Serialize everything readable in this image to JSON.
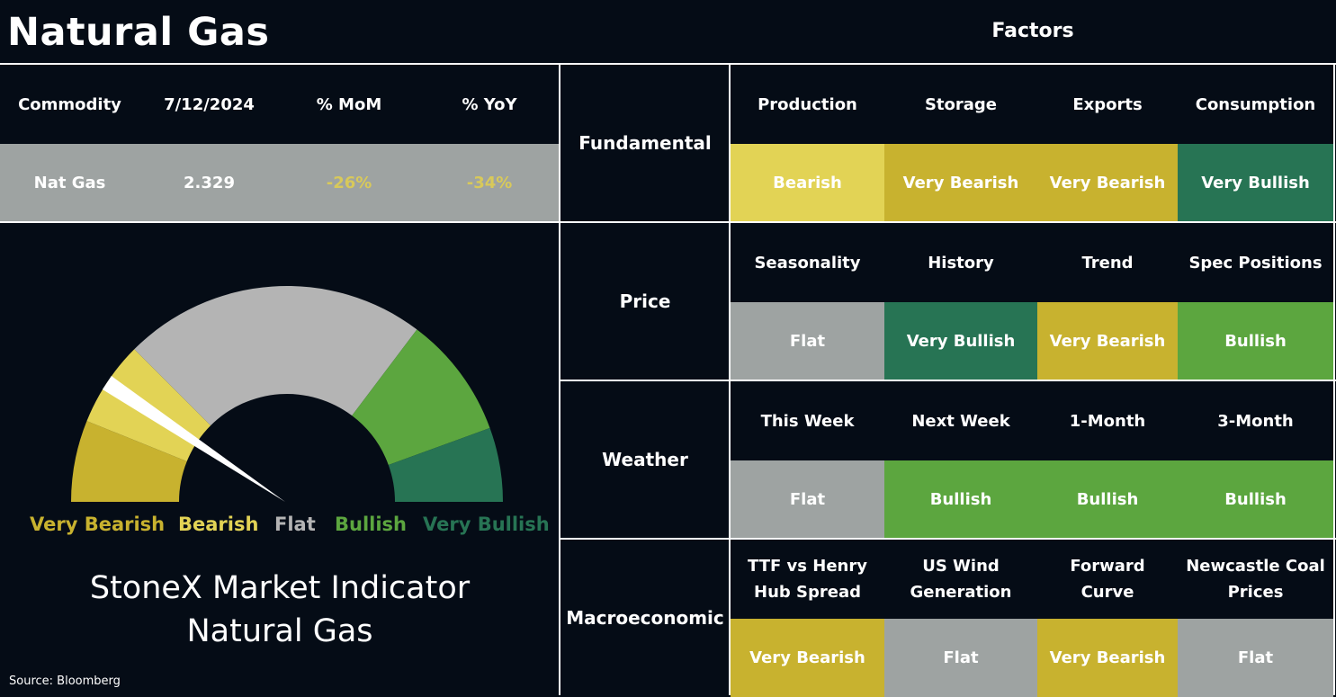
{
  "title": "Natural Gas",
  "factors_title": "Factors",
  "summary": {
    "headers": [
      "Commodity",
      "7/12/2024",
      "% MoM",
      "% YoY"
    ],
    "row": [
      "Nat Gas",
      "2.329",
      "-26%",
      "-34%"
    ]
  },
  "colors": {
    "background": "#050c16",
    "very_bearish": "#c8b22f",
    "bearish": "#e2d355",
    "flat": "#9ea3a2",
    "bullish": "#5ca63f",
    "very_bullish": "#277454",
    "negative_text": "#d8c95a"
  },
  "chart_data": {
    "type": "gauge",
    "categories": [
      "Very Bearish",
      "Bearish",
      "Flat",
      "Bullish",
      "Very Bullish"
    ],
    "colors": [
      "#c8b22f",
      "#e2d355",
      "#b4b4b4",
      "#5ca63f",
      "#277454"
    ],
    "label_colors": [
      "#c8b22f",
      "#e2d355",
      "#b4b4b4",
      "#5ca63f",
      "#277454"
    ],
    "pointer_category": "Bearish",
    "title": "StoneX Market Indicator",
    "subtitle": "Natural Gas"
  },
  "source": "Source: Bloomberg",
  "factors": [
    {
      "category": "Fundamental",
      "items": [
        {
          "name": "Production",
          "value": "Bearish"
        },
        {
          "name": "Storage",
          "value": "Very Bearish"
        },
        {
          "name": "Exports",
          "value": "Very Bearish"
        },
        {
          "name": "Consumption",
          "value": "Very Bullish"
        }
      ]
    },
    {
      "category": "Price",
      "items": [
        {
          "name": "Seasonality",
          "value": "Flat"
        },
        {
          "name": "History",
          "value": "Very Bullish"
        },
        {
          "name": "Trend",
          "value": "Very Bearish"
        },
        {
          "name": "Spec Positions",
          "value": "Bullish"
        }
      ]
    },
    {
      "category": "Weather",
      "items": [
        {
          "name": "This Week",
          "value": "Flat"
        },
        {
          "name": "Next Week",
          "value": "Bullish"
        },
        {
          "name": "1-Month",
          "value": "Bullish"
        },
        {
          "name": "3-Month",
          "value": "Bullish"
        }
      ]
    },
    {
      "category": "Macroeconomic",
      "items": [
        {
          "name": "TTF vs Henry Hub Spread",
          "value": "Very Bearish"
        },
        {
          "name": "US Wind Generation",
          "value": "Flat"
        },
        {
          "name": "Forward Curve",
          "value": "Very Bearish"
        },
        {
          "name": "Newcastle Coal Prices",
          "value": "Flat"
        }
      ]
    }
  ]
}
